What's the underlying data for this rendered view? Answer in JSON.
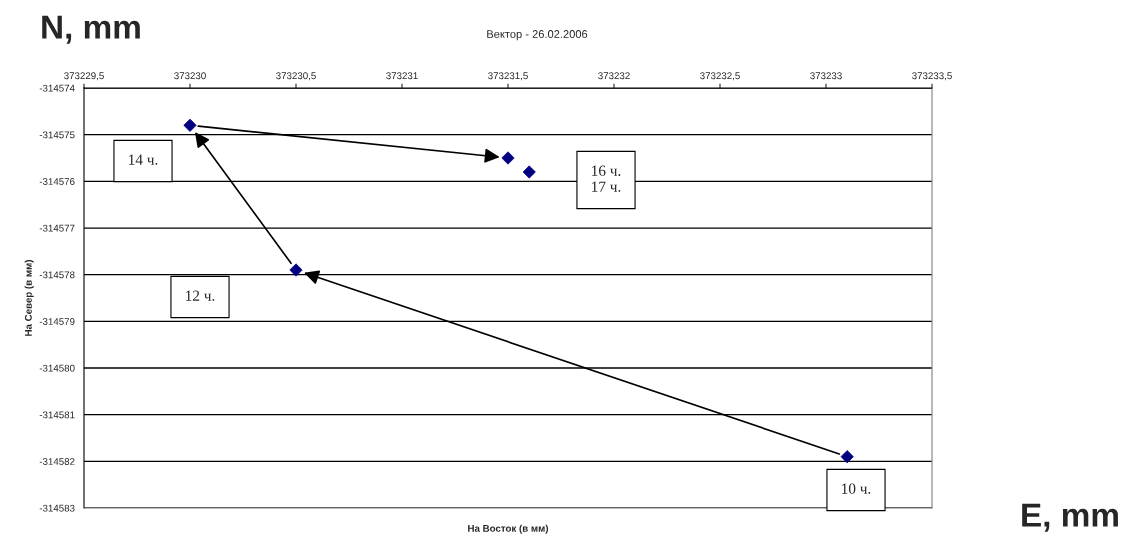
{
  "chart_data": {
    "type": "scatter",
    "title": "Вектор - 26.02.2006",
    "xlabel": "На Восток (в мм)",
    "ylabel": "На Север (в мм)",
    "x": [
      373233.1,
      373230.5,
      373230.0,
      373231.5,
      373231.6
    ],
    "series": [
      {
        "color": "#000080",
        "values": [
          -314581.9,
          -314577.9,
          -314574.8,
          -314575.5,
          -314575.8
        ]
      }
    ],
    "marker": "diamond",
    "grid": "y",
    "legend": false,
    "xlim": [
      373229.5,
      373233.5
    ],
    "xticks": [
      {
        "value": 373229.5,
        "label": "373229,5"
      },
      373230,
      {
        "value": 373230.5,
        "label": "373230,5"
      },
      373231,
      {
        "value": 373231.5,
        "label": "373231,5"
      },
      373232,
      {
        "value": 373232.5,
        "label": "373232,5"
      },
      373233,
      {
        "value": 373233.5,
        "label": "373233,5"
      }
    ],
    "ylim": [
      -314583,
      -314574
    ],
    "yticks": [
      -314583,
      -314582,
      -314581,
      -314580,
      -314579,
      -314578,
      -314577,
      -314576,
      -314575,
      -314574
    ],
    "annotations": [
      "N, mm",
      "E, mm",
      "10 ч.",
      "12 ч.",
      "14 ч.",
      "16 ч.\n17 ч."
    ]
  }
}
